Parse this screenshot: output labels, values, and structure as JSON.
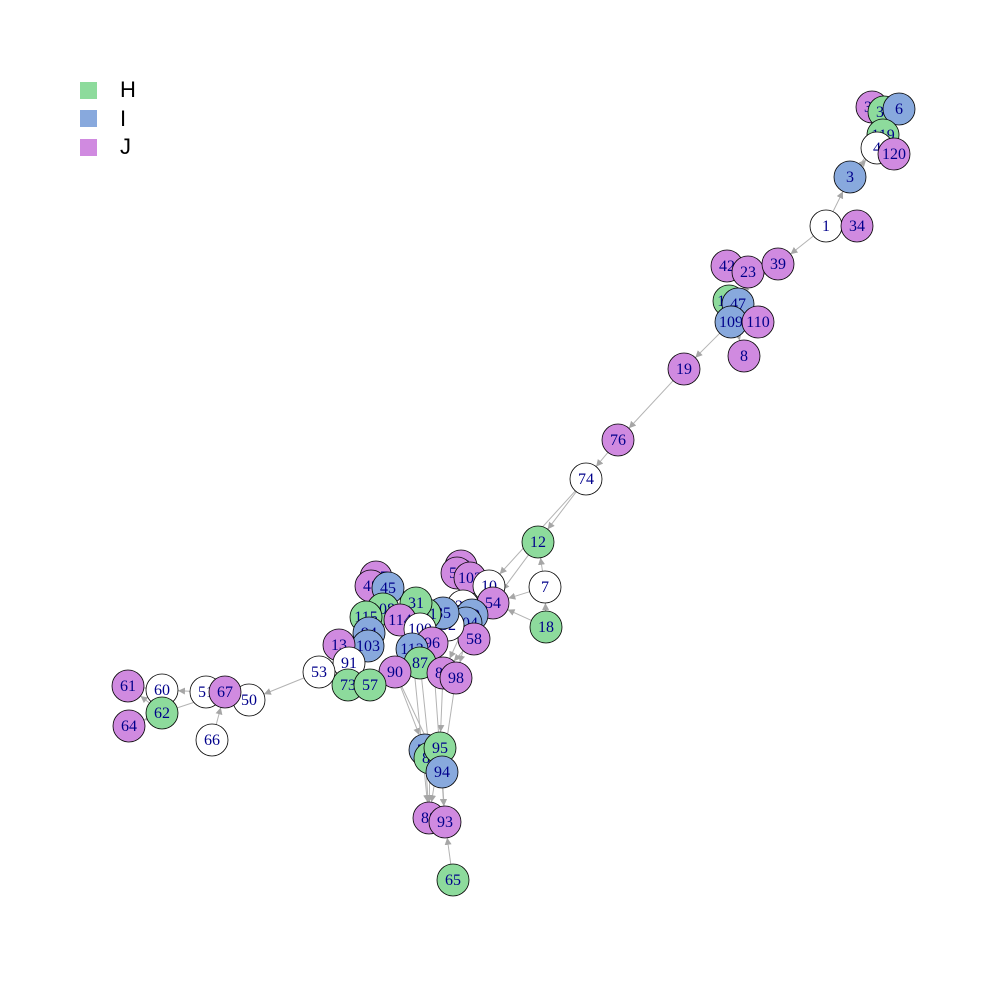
{
  "legend": [
    {
      "label": "H",
      "color": "#8ddb9c"
    },
    {
      "label": "I",
      "color": "#88a9dd"
    },
    {
      "label": "J",
      "color": "#d08ae0"
    }
  ],
  "colors": {
    "H": "#8ddb9c",
    "I": "#88a9dd",
    "J": "#d08ae0",
    "none": "#ffffff",
    "edge": "#b3b3b3"
  },
  "nodes": [
    {
      "id": "37",
      "group": "J"
    },
    {
      "id": "35",
      "group": "H"
    },
    {
      "id": "6",
      "group": "I"
    },
    {
      "id": "119",
      "group": "H"
    },
    {
      "id": "4",
      "group": "none"
    },
    {
      "id": "120",
      "group": "J"
    },
    {
      "id": "3",
      "group": "I"
    },
    {
      "id": "1",
      "group": "none"
    },
    {
      "id": "34",
      "group": "J"
    },
    {
      "id": "42",
      "group": "J"
    },
    {
      "id": "23",
      "group": "J"
    },
    {
      "id": "39",
      "group": "J"
    },
    {
      "id": "112",
      "group": "H"
    },
    {
      "id": "47",
      "group": "I"
    },
    {
      "id": "109",
      "group": "I"
    },
    {
      "id": "110",
      "group": "J"
    },
    {
      "id": "8",
      "group": "J"
    },
    {
      "id": "19",
      "group": "J"
    },
    {
      "id": "76",
      "group": "J"
    },
    {
      "id": "74",
      "group": "none"
    },
    {
      "id": "12",
      "group": "H"
    },
    {
      "id": "7",
      "group": "none"
    },
    {
      "id": "18",
      "group": "H"
    },
    {
      "id": "77",
      "group": "J"
    },
    {
      "id": "56",
      "group": "J"
    },
    {
      "id": "102",
      "group": "J"
    },
    {
      "id": "10",
      "group": "none"
    },
    {
      "id": "54",
      "group": "J"
    },
    {
      "id": "30",
      "group": "none"
    },
    {
      "id": "89",
      "group": "I"
    },
    {
      "id": "104",
      "group": "I"
    },
    {
      "id": "58",
      "group": "J"
    },
    {
      "id": "32",
      "group": "none"
    },
    {
      "id": "85",
      "group": "I"
    },
    {
      "id": "101",
      "group": "H"
    },
    {
      "id": "31",
      "group": "H"
    },
    {
      "id": "107",
      "group": "J"
    },
    {
      "id": "48",
      "group": "J"
    },
    {
      "id": "45",
      "group": "I"
    },
    {
      "id": "108",
      "group": "H"
    },
    {
      "id": "115",
      "group": "H"
    },
    {
      "id": "114",
      "group": "J"
    },
    {
      "id": "100",
      "group": "none"
    },
    {
      "id": "96",
      "group": "J"
    },
    {
      "id": "94b",
      "label": "94",
      "group": "I"
    },
    {
      "id": "103",
      "group": "I"
    },
    {
      "id": "13",
      "group": "J"
    },
    {
      "id": "113",
      "group": "I"
    },
    {
      "id": "87",
      "group": "H"
    },
    {
      "id": "91",
      "group": "none"
    },
    {
      "id": "90",
      "group": "J"
    },
    {
      "id": "80",
      "group": "J"
    },
    {
      "id": "98",
      "group": "J"
    },
    {
      "id": "73",
      "group": "H"
    },
    {
      "id": "57",
      "group": "H"
    },
    {
      "id": "53",
      "group": "none"
    },
    {
      "id": "50",
      "group": "none"
    },
    {
      "id": "51",
      "group": "none"
    },
    {
      "id": "67",
      "group": "J"
    },
    {
      "id": "66",
      "group": "none"
    },
    {
      "id": "60",
      "group": "none"
    },
    {
      "id": "61",
      "group": "J"
    },
    {
      "id": "62",
      "group": "H"
    },
    {
      "id": "64",
      "group": "J"
    },
    {
      "id": "79",
      "group": "I"
    },
    {
      "id": "81",
      "group": "H"
    },
    {
      "id": "95",
      "group": "H"
    },
    {
      "id": "94",
      "group": "I"
    },
    {
      "id": "88",
      "group": "J"
    },
    {
      "id": "93",
      "group": "J"
    },
    {
      "id": "65",
      "group": "H"
    }
  ],
  "edges": [
    [
      "1",
      "3"
    ],
    [
      "1",
      "34"
    ],
    [
      "1",
      "39"
    ],
    [
      "3",
      "4"
    ],
    [
      "3",
      "119"
    ],
    [
      "4",
      "120"
    ],
    [
      "4",
      "35"
    ],
    [
      "37",
      "35"
    ],
    [
      "6",
      "4"
    ],
    [
      "39",
      "23"
    ],
    [
      "39",
      "112"
    ],
    [
      "42",
      "23"
    ],
    [
      "23",
      "47"
    ],
    [
      "47",
      "109"
    ],
    [
      "109",
      "110"
    ],
    [
      "112",
      "8"
    ],
    [
      "109",
      "19"
    ],
    [
      "19",
      "76"
    ],
    [
      "76",
      "74"
    ],
    [
      "74",
      "12"
    ],
    [
      "74",
      "10"
    ],
    [
      "12",
      "54"
    ],
    [
      "7",
      "12"
    ],
    [
      "7",
      "54"
    ],
    [
      "18",
      "7"
    ],
    [
      "18",
      "54"
    ],
    [
      "54",
      "30"
    ],
    [
      "10",
      "89"
    ],
    [
      "56",
      "102"
    ],
    [
      "77",
      "30"
    ],
    [
      "30",
      "58"
    ],
    [
      "89",
      "98"
    ],
    [
      "104",
      "80"
    ],
    [
      "32",
      "96"
    ],
    [
      "85",
      "113"
    ],
    [
      "101",
      "87"
    ],
    [
      "31",
      "108"
    ],
    [
      "107",
      "45"
    ],
    [
      "48",
      "115"
    ],
    [
      "108",
      "114"
    ],
    [
      "115",
      "103"
    ],
    [
      "114",
      "100"
    ],
    [
      "100",
      "96"
    ],
    [
      "103",
      "91"
    ],
    [
      "13",
      "73"
    ],
    [
      "91",
      "53"
    ],
    [
      "53",
      "50"
    ],
    [
      "50",
      "67"
    ],
    [
      "67",
      "51"
    ],
    [
      "51",
      "60"
    ],
    [
      "60",
      "61"
    ],
    [
      "62",
      "61"
    ],
    [
      "62",
      "64"
    ],
    [
      "62",
      "67"
    ],
    [
      "66",
      "67"
    ],
    [
      "90",
      "79"
    ],
    [
      "90",
      "94"
    ],
    [
      "87",
      "81"
    ],
    [
      "80",
      "95"
    ],
    [
      "98",
      "94"
    ],
    [
      "113",
      "88"
    ],
    [
      "96",
      "93"
    ],
    [
      "95",
      "88"
    ],
    [
      "94",
      "93"
    ],
    [
      "81",
      "88"
    ],
    [
      "65",
      "93"
    ],
    [
      "79",
      "88"
    ],
    [
      "87",
      "98"
    ],
    [
      "57",
      "90"
    ],
    [
      "73",
      "103"
    ],
    [
      "31",
      "101"
    ],
    [
      "45",
      "108"
    ],
    [
      "102",
      "85"
    ],
    [
      "58",
      "80"
    ],
    [
      "104",
      "89"
    ],
    [
      "30",
      "104"
    ],
    [
      "32",
      "85"
    ]
  ]
}
